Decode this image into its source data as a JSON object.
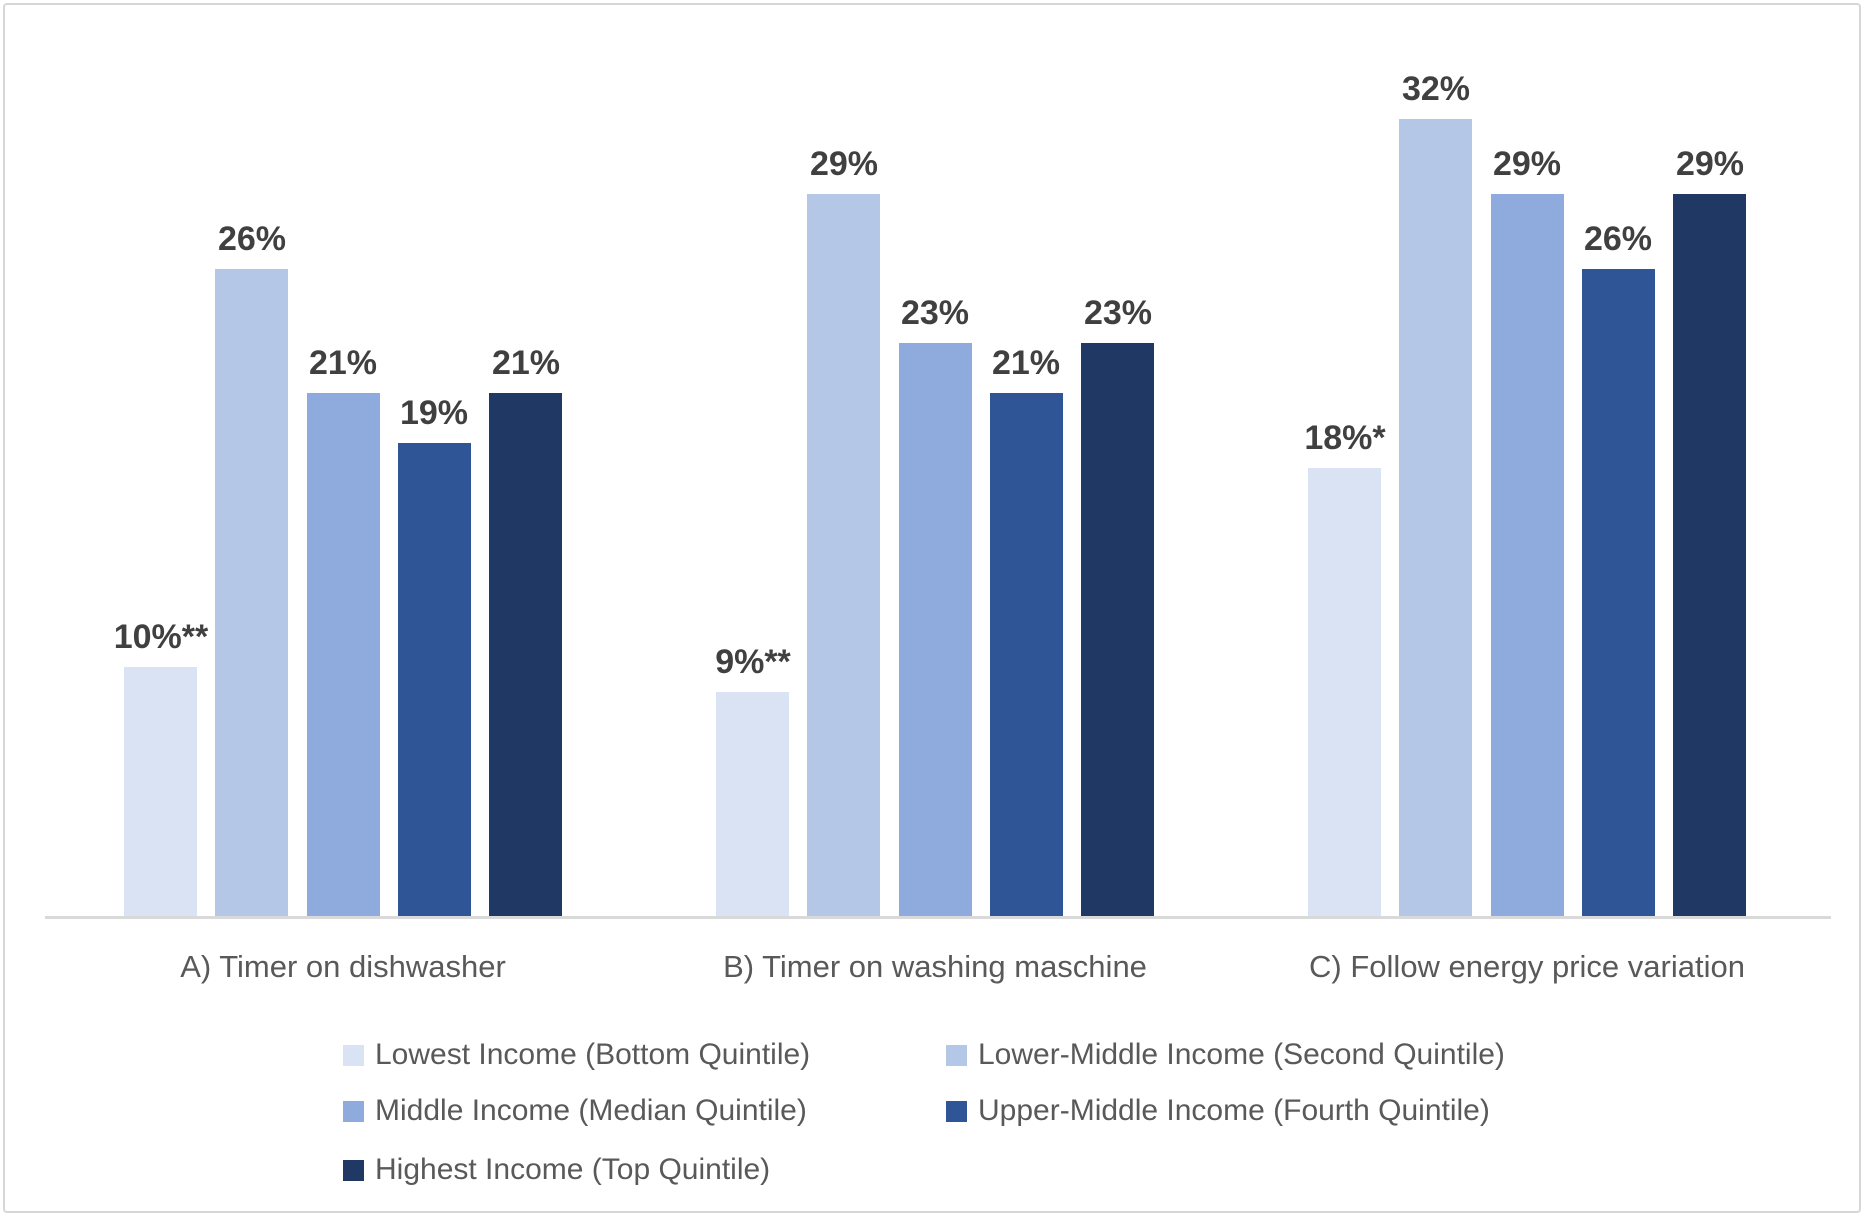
{
  "chart_data": {
    "type": "bar",
    "title": "",
    "categories": [
      "A) Timer on dishwasher",
      "B) Timer on washing maschine",
      "C) Follow energy price variation"
    ],
    "series": [
      {
        "name": "Lowest Income (Bottom Quintile)",
        "color": "#dae3f3",
        "values": [
          10,
          9,
          18
        ],
        "labels": [
          "10%**",
          "9%**",
          "18%*"
        ]
      },
      {
        "name": "Lower-Middle Income (Second Quintile)",
        "color": "#b4c7e7",
        "values": [
          26,
          29,
          32
        ],
        "labels": [
          "26%",
          "29%",
          "32%"
        ]
      },
      {
        "name": "Middle Income (Median Quintile)",
        "color": "#8faadc",
        "values": [
          21,
          23,
          29
        ],
        "labels": [
          "21%",
          "23%",
          "29%"
        ]
      },
      {
        "name": "Upper-Middle Income (Fourth Quintile)",
        "color": "#2f5597",
        "values": [
          19,
          21,
          26
        ],
        "labels": [
          "19%",
          "21%",
          "26%"
        ]
      },
      {
        "name": "Highest Income (Top Quintile)",
        "color": "#1f3864",
        "values": [
          21,
          23,
          29
        ],
        "labels": [
          "21%",
          "23%",
          "29%"
        ]
      }
    ],
    "xlabel": "",
    "ylabel": "",
    "ylim": [
      0,
      35
    ],
    "grid": false,
    "legend_position": "bottom",
    "value_label_color": "#404040",
    "category_label_color": "#595959",
    "legend_text_color": "#595959",
    "axis_line_color": "#d9d9d9",
    "frame_border_color": "#d6d6d6"
  }
}
